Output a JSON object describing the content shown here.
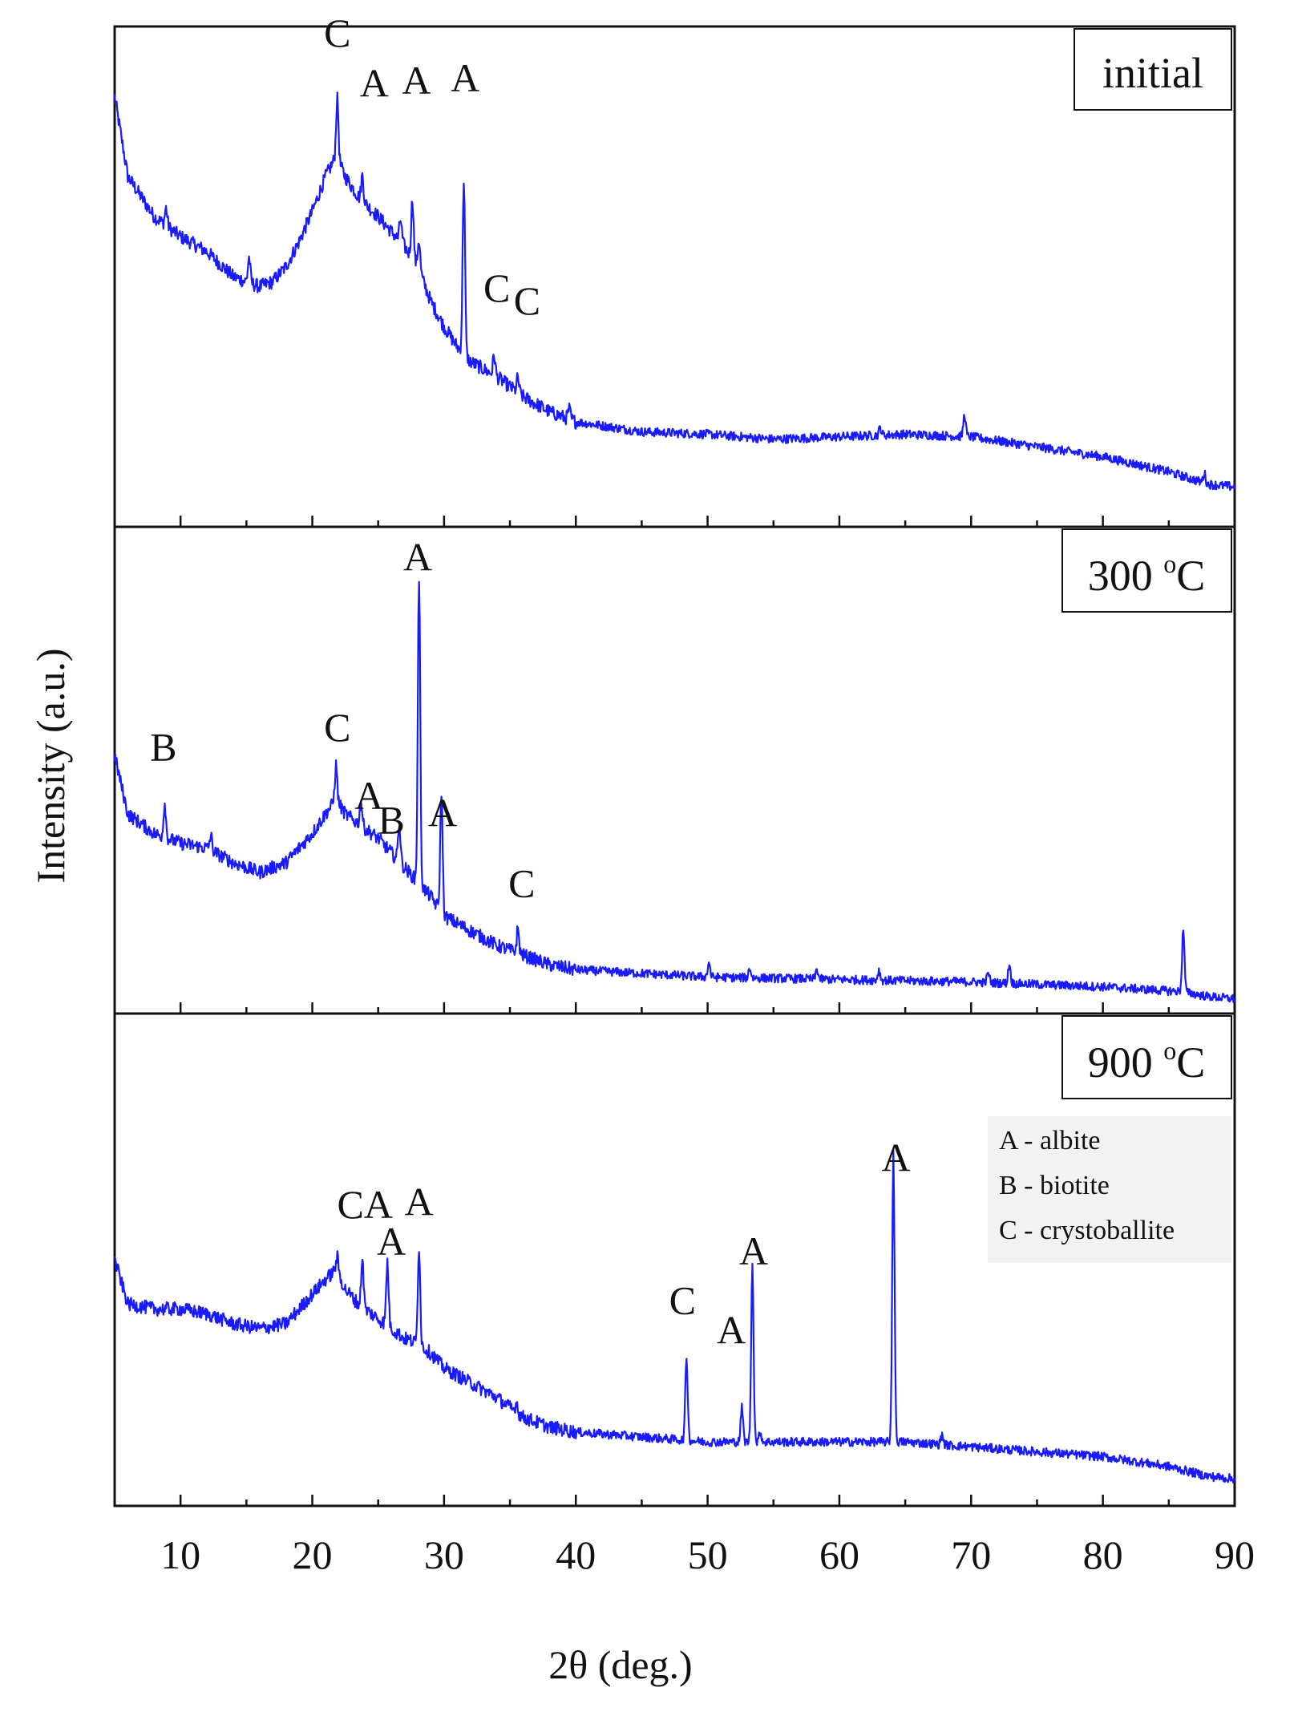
{
  "chart_data": {
    "type": "line",
    "xlabel": "2θ (deg.)",
    "ylabel": "Intensity (a.u.)",
    "xlim": [
      5,
      90
    ],
    "xticks": [
      10,
      20,
      30,
      40,
      50,
      60,
      70,
      80,
      90
    ],
    "y_ticks_shown": false,
    "series_color": "#1a1aff",
    "legend": {
      "position": "right, inside bottom panel",
      "entries": [
        "A - albite",
        "B - biotite",
        "C - crystoballite"
      ]
    },
    "panels": [
      {
        "name": "initial",
        "label": "initial",
        "ylim": [
          0,
          1
        ],
        "baseline": [
          [
            5,
            0.86
          ],
          [
            6,
            0.7
          ],
          [
            8,
            0.62
          ],
          [
            10,
            0.58
          ],
          [
            12,
            0.55
          ],
          [
            14,
            0.5
          ],
          [
            16,
            0.48
          ],
          [
            17,
            0.49
          ],
          [
            18,
            0.52
          ],
          [
            19,
            0.57
          ],
          [
            20,
            0.63
          ],
          [
            21,
            0.7
          ],
          [
            21.8,
            0.74
          ],
          [
            22.5,
            0.7
          ],
          [
            23.5,
            0.66
          ],
          [
            25,
            0.62
          ],
          [
            26,
            0.59
          ],
          [
            27,
            0.56
          ],
          [
            28,
            0.52
          ],
          [
            29,
            0.45
          ],
          [
            30,
            0.4
          ],
          [
            31,
            0.36
          ],
          [
            32,
            0.33
          ],
          [
            34,
            0.3
          ],
          [
            36,
            0.26
          ],
          [
            38,
            0.23
          ],
          [
            40,
            0.21
          ],
          [
            45,
            0.19
          ],
          [
            50,
            0.185
          ],
          [
            55,
            0.175
          ],
          [
            60,
            0.18
          ],
          [
            65,
            0.185
          ],
          [
            70,
            0.18
          ],
          [
            75,
            0.16
          ],
          [
            80,
            0.14
          ],
          [
            85,
            0.11
          ],
          [
            88,
            0.085
          ],
          [
            90,
            0.08
          ]
        ],
        "peaks": [
          {
            "x": 8.9,
            "h": 0.035
          },
          {
            "x": 15.2,
            "h": 0.05
          },
          {
            "x": 21.9,
            "h": 0.12
          },
          {
            "x": 23.8,
            "h": 0.05
          },
          {
            "x": 26.7,
            "h": 0.045
          },
          {
            "x": 27.6,
            "h": 0.12
          },
          {
            "x": 28.1,
            "h": 0.06
          },
          {
            "x": 31.5,
            "h": 0.35
          },
          {
            "x": 33.8,
            "h": 0.04
          },
          {
            "x": 35.6,
            "h": 0.03
          },
          {
            "x": 39.5,
            "h": 0.02
          },
          {
            "x": 63.1,
            "h": 0.015
          },
          {
            "x": 69.5,
            "h": 0.045
          },
          {
            "x": 87.7,
            "h": 0.02
          }
        ],
        "annotations": [
          {
            "text": "C",
            "x": 21.9,
            "y": 0.96
          },
          {
            "text": "A",
            "x": 24.7,
            "y": 0.86
          },
          {
            "text": "A",
            "x": 27.9,
            "y": 0.865
          },
          {
            "text": "A",
            "x": 31.6,
            "y": 0.87
          },
          {
            "text": "C",
            "x": 34.0,
            "y": 0.45
          },
          {
            "text": "C",
            "x": 36.3,
            "y": 0.425
          }
        ]
      },
      {
        "name": "300C",
        "label": "300 °C",
        "label_main": "300 ",
        "label_sup": "o",
        "label_unit": "C",
        "ylim": [
          0,
          1
        ],
        "baseline": [
          [
            5,
            0.53
          ],
          [
            6,
            0.41
          ],
          [
            8,
            0.37
          ],
          [
            10,
            0.35
          ],
          [
            12,
            0.34
          ],
          [
            14,
            0.31
          ],
          [
            16,
            0.29
          ],
          [
            18,
            0.31
          ],
          [
            20,
            0.37
          ],
          [
            21,
            0.41
          ],
          [
            21.8,
            0.44
          ],
          [
            22.5,
            0.41
          ],
          [
            23.5,
            0.39
          ],
          [
            25,
            0.36
          ],
          [
            26,
            0.33
          ],
          [
            27,
            0.3
          ],
          [
            28,
            0.27
          ],
          [
            29,
            0.24
          ],
          [
            30,
            0.2
          ],
          [
            32,
            0.17
          ],
          [
            34,
            0.14
          ],
          [
            36,
            0.12
          ],
          [
            38,
            0.1
          ],
          [
            40,
            0.09
          ],
          [
            50,
            0.075
          ],
          [
            60,
            0.07
          ],
          [
            70,
            0.065
          ],
          [
            80,
            0.055
          ],
          [
            86,
            0.045
          ],
          [
            88,
            0.035
          ],
          [
            90,
            0.03
          ]
        ],
        "peaks": [
          {
            "x": 8.8,
            "h": 0.07
          },
          {
            "x": 12.3,
            "h": 0.03
          },
          {
            "x": 21.8,
            "h": 0.07
          },
          {
            "x": 23.7,
            "h": 0.05
          },
          {
            "x": 26.6,
            "h": 0.08
          },
          {
            "x": 28.1,
            "h": 0.63
          },
          {
            "x": 29.8,
            "h": 0.25
          },
          {
            "x": 35.6,
            "h": 0.05
          },
          {
            "x": 50.1,
            "h": 0.03
          },
          {
            "x": 53.2,
            "h": 0.02
          },
          {
            "x": 58.3,
            "h": 0.02
          },
          {
            "x": 63.0,
            "h": 0.02
          },
          {
            "x": 71.3,
            "h": 0.02
          },
          {
            "x": 72.9,
            "h": 0.04
          },
          {
            "x": 86.1,
            "h": 0.13
          }
        ],
        "annotations": [
          {
            "text": "B",
            "x": 8.7,
            "y": 0.52
          },
          {
            "text": "C",
            "x": 21.9,
            "y": 0.56
          },
          {
            "text": "A",
            "x": 24.3,
            "y": 0.42
          },
          {
            "text": "B",
            "x": 26.0,
            "y": 0.37
          },
          {
            "text": "A",
            "x": 28.0,
            "y": 0.91
          },
          {
            "text": "A",
            "x": 29.9,
            "y": 0.385
          },
          {
            "text": "C",
            "x": 35.9,
            "y": 0.24
          }
        ]
      },
      {
        "name": "900C",
        "label": "900 °C",
        "label_main": "900 ",
        "label_sup": "o",
        "label_unit": "C",
        "ylim": [
          0,
          1
        ],
        "baseline": [
          [
            5,
            0.5
          ],
          [
            6,
            0.41
          ],
          [
            8,
            0.4
          ],
          [
            10,
            0.4
          ],
          [
            12,
            0.39
          ],
          [
            14,
            0.37
          ],
          [
            16,
            0.36
          ],
          [
            18,
            0.37
          ],
          [
            19,
            0.4
          ],
          [
            20,
            0.43
          ],
          [
            21,
            0.46
          ],
          [
            21.8,
            0.48
          ],
          [
            22.5,
            0.44
          ],
          [
            23.5,
            0.41
          ],
          [
            25,
            0.38
          ],
          [
            26,
            0.36
          ],
          [
            27,
            0.34
          ],
          [
            28,
            0.33
          ],
          [
            29,
            0.31
          ],
          [
            30,
            0.28
          ],
          [
            32,
            0.25
          ],
          [
            34,
            0.22
          ],
          [
            36,
            0.18
          ],
          [
            38,
            0.16
          ],
          [
            40,
            0.15
          ],
          [
            45,
            0.14
          ],
          [
            50,
            0.13
          ],
          [
            60,
            0.13
          ],
          [
            65,
            0.13
          ],
          [
            70,
            0.12
          ],
          [
            80,
            0.1
          ],
          [
            85,
            0.08
          ],
          [
            88,
            0.06
          ],
          [
            90,
            0.055
          ]
        ],
        "peaks": [
          {
            "x": 21.9,
            "h": 0.03
          },
          {
            "x": 23.8,
            "h": 0.1
          },
          {
            "x": 25.7,
            "h": 0.13
          },
          {
            "x": 28.1,
            "h": 0.2
          },
          {
            "x": 35.5,
            "h": 0.02
          },
          {
            "x": 48.4,
            "h": 0.17
          },
          {
            "x": 52.6,
            "h": 0.07
          },
          {
            "x": 53.4,
            "h": 0.36
          },
          {
            "x": 54.0,
            "h": 0.02
          },
          {
            "x": 64.1,
            "h": 0.59
          },
          {
            "x": 67.8,
            "h": 0.02
          }
        ],
        "annotations": [
          {
            "text": "CA",
            "x": 24.0,
            "y": 0.585
          },
          {
            "text": "A",
            "x": 26.0,
            "y": 0.51
          },
          {
            "text": "A",
            "x": 28.1,
            "y": 0.59
          },
          {
            "text": "C",
            "x": 48.1,
            "y": 0.39
          },
          {
            "text": "A",
            "x": 51.8,
            "y": 0.33
          },
          {
            "text": "A",
            "x": 53.5,
            "y": 0.49
          },
          {
            "text": "A",
            "x": 64.3,
            "y": 0.68
          }
        ]
      }
    ]
  }
}
